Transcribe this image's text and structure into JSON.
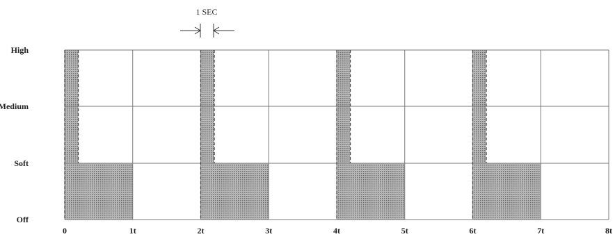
{
  "chart_data": {
    "type": "timing-diagram",
    "levels": [
      "Off",
      "Soft",
      "Medium",
      "High"
    ],
    "x_ticks": [
      "0",
      "1t",
      "2t",
      "3t",
      "4t",
      "5t",
      "6t",
      "7t",
      "8t"
    ],
    "annotation": "1 SEC",
    "pulse_starts_t": [
      0,
      2,
      4,
      6
    ],
    "high_pulse_duration_t": 0.2,
    "soft_duration_t": 1,
    "fill_color": "#9a9a9a"
  }
}
